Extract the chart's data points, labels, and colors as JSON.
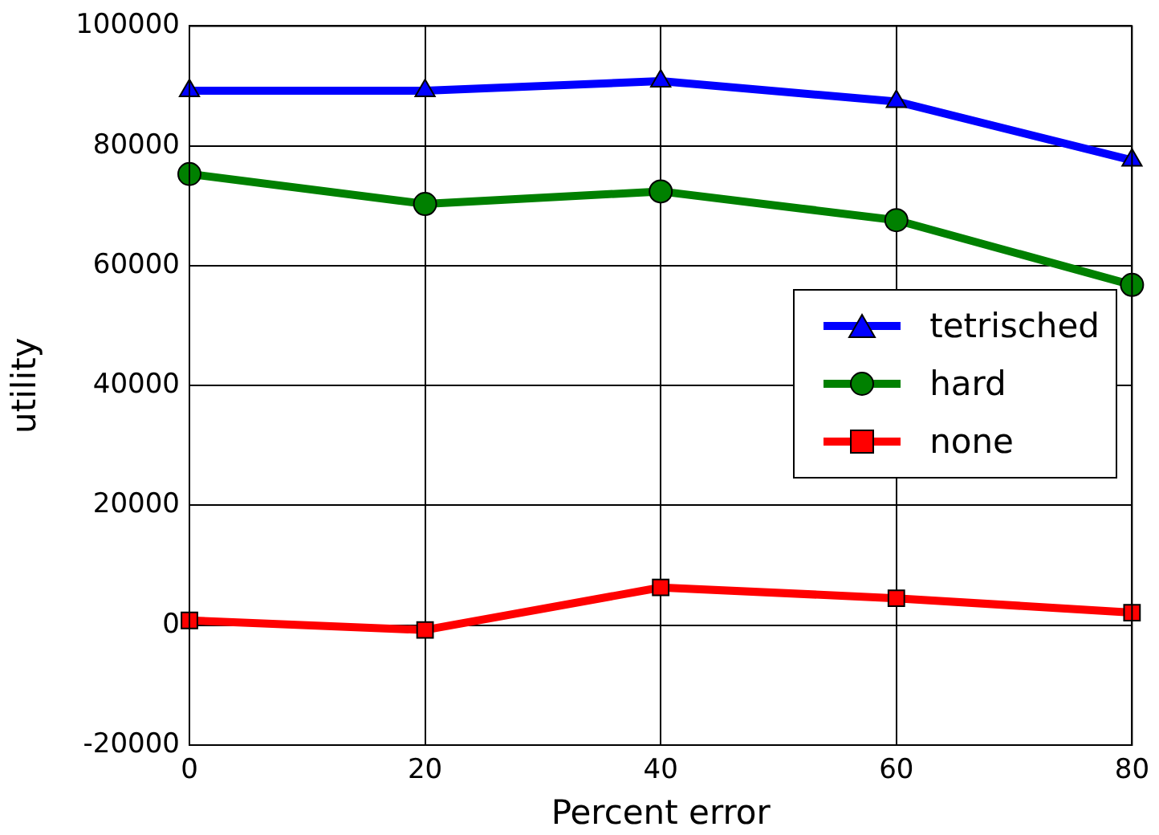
{
  "chart_data": {
    "type": "line",
    "xlabel": "Percent error",
    "ylabel": "utility",
    "x": [
      0,
      20,
      40,
      60,
      80
    ],
    "series": [
      {
        "name": "tetrisched",
        "color": "#0000ff",
        "marker": "triangle",
        "values": [
          89200,
          89200,
          90800,
          87400,
          77600
        ]
      },
      {
        "name": "hard",
        "color": "#008000",
        "marker": "circle",
        "values": [
          75300,
          70300,
          72400,
          67600,
          56800
        ]
      },
      {
        "name": "none",
        "color": "#ff0000",
        "marker": "square",
        "values": [
          800,
          -800,
          6300,
          4500,
          2100
        ]
      }
    ],
    "xlim": [
      0,
      80
    ],
    "xticks": [
      0,
      20,
      40,
      60,
      80
    ],
    "ylim": [
      -20000,
      100000
    ],
    "yticks": [
      -20000,
      0,
      20000,
      40000,
      60000,
      80000,
      100000
    ],
    "grid": true,
    "legend": "right",
    "line_style": "solid"
  }
}
